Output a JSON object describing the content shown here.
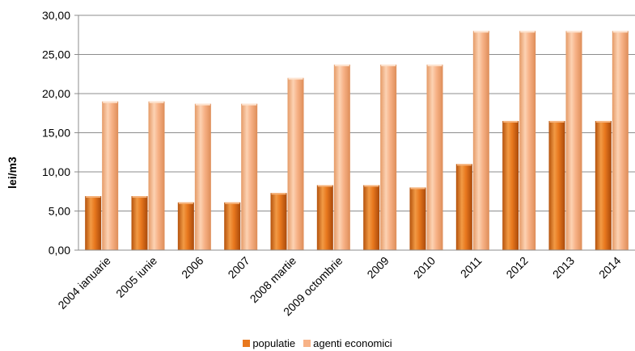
{
  "chart_data": {
    "type": "bar",
    "categories": [
      "2004 ianuarie",
      "2005 iunie",
      "2006",
      "2007",
      "2008 martie",
      "2009 octombrie",
      "2009",
      "2010",
      "2011",
      "2012",
      "2013",
      "2014"
    ],
    "series": [
      {
        "name": "populatie",
        "color": "#e8781e",
        "values": [
          6.9,
          6.9,
          6.1,
          6.1,
          7.3,
          8.3,
          8.3,
          8.0,
          11.0,
          16.5,
          16.5,
          16.5
        ]
      },
      {
        "name": "agenti economici",
        "color": "#f7b287",
        "values": [
          19.0,
          19.0,
          18.7,
          18.7,
          22.0,
          23.7,
          23.7,
          23.7,
          28.0,
          28.0,
          28.0,
          28.0
        ]
      }
    ],
    "ylabel": "lei/m3",
    "ylim": [
      0,
      30
    ],
    "yticks": [
      "0,00",
      "5,00",
      "10,00",
      "15,00",
      "20,00",
      "25,00",
      "30,00"
    ],
    "grid": true,
    "legend_position": "bottom"
  }
}
